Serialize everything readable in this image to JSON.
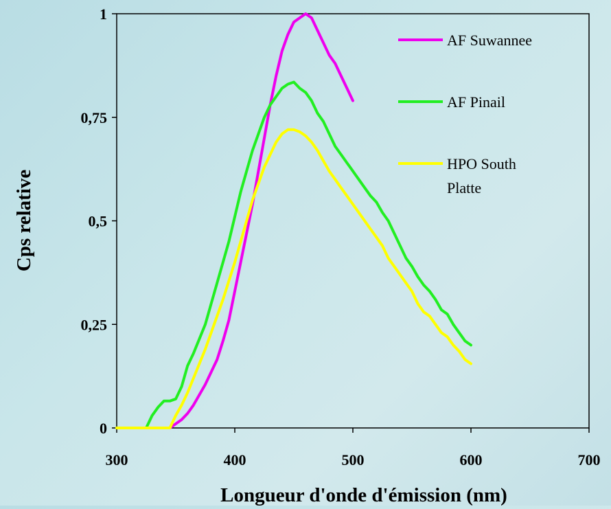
{
  "chart_data": {
    "type": "line",
    "title": "",
    "xlabel": "Longueur d'onde d'émission (nm)",
    "ylabel": "Cps relative",
    "xlim": [
      300,
      700
    ],
    "ylim": [
      0,
      1
    ],
    "x_ticks": [
      300,
      400,
      500,
      600,
      700
    ],
    "y_ticks": [
      {
        "value": 0,
        "label": "0"
      },
      {
        "value": 0.25,
        "label": "0,25"
      },
      {
        "value": 0.5,
        "label": "0,5"
      },
      {
        "value": 0.75,
        "label": "0,75"
      },
      {
        "value": 1,
        "label": "1"
      }
    ],
    "grid": false,
    "legend_position": "top-right",
    "series": [
      {
        "name": "AF Suwannee",
        "color": "#ee00ee",
        "legend_lines": [
          "AF Suwannee"
        ],
        "points": [
          [
            300,
            0
          ],
          [
            345,
            0
          ],
          [
            350,
            0.01
          ],
          [
            355,
            0.02
          ],
          [
            360,
            0.035
          ],
          [
            365,
            0.055
          ],
          [
            370,
            0.08
          ],
          [
            375,
            0.105
          ],
          [
            380,
            0.135
          ],
          [
            385,
            0.165
          ],
          [
            390,
            0.21
          ],
          [
            395,
            0.26
          ],
          [
            400,
            0.33
          ],
          [
            405,
            0.4
          ],
          [
            410,
            0.47
          ],
          [
            415,
            0.54
          ],
          [
            420,
            0.62
          ],
          [
            425,
            0.7
          ],
          [
            430,
            0.78
          ],
          [
            435,
            0.85
          ],
          [
            440,
            0.91
          ],
          [
            445,
            0.95
          ],
          [
            450,
            0.98
          ],
          [
            455,
            0.99
          ],
          [
            460,
            1.0
          ],
          [
            465,
            0.99
          ],
          [
            470,
            0.96
          ],
          [
            475,
            0.93
          ],
          [
            480,
            0.9
          ],
          [
            485,
            0.88
          ],
          [
            490,
            0.85
          ],
          [
            495,
            0.82
          ],
          [
            500,
            0.79
          ]
        ]
      },
      {
        "name": "AF Pinail",
        "color": "#22ee22",
        "legend_lines": [
          "AF Pinail"
        ],
        "points": [
          [
            300,
            0
          ],
          [
            325,
            0
          ],
          [
            330,
            0.03
          ],
          [
            335,
            0.05
          ],
          [
            340,
            0.065
          ],
          [
            345,
            0.065
          ],
          [
            350,
            0.07
          ],
          [
            355,
            0.1
          ],
          [
            360,
            0.15
          ],
          [
            365,
            0.18
          ],
          [
            370,
            0.215
          ],
          [
            375,
            0.25
          ],
          [
            380,
            0.3
          ],
          [
            385,
            0.35
          ],
          [
            390,
            0.4
          ],
          [
            395,
            0.45
          ],
          [
            400,
            0.51
          ],
          [
            405,
            0.57
          ],
          [
            410,
            0.62
          ],
          [
            415,
            0.67
          ],
          [
            420,
            0.71
          ],
          [
            425,
            0.75
          ],
          [
            430,
            0.78
          ],
          [
            435,
            0.8
          ],
          [
            440,
            0.82
          ],
          [
            445,
            0.83
          ],
          [
            450,
            0.835
          ],
          [
            455,
            0.82
          ],
          [
            460,
            0.81
          ],
          [
            465,
            0.79
          ],
          [
            470,
            0.76
          ],
          [
            475,
            0.74
          ],
          [
            480,
            0.71
          ],
          [
            485,
            0.68
          ],
          [
            490,
            0.66
          ],
          [
            495,
            0.64
          ],
          [
            500,
            0.62
          ],
          [
            505,
            0.6
          ],
          [
            510,
            0.58
          ],
          [
            515,
            0.56
          ],
          [
            520,
            0.545
          ],
          [
            525,
            0.52
          ],
          [
            530,
            0.5
          ],
          [
            535,
            0.47
          ],
          [
            540,
            0.44
          ],
          [
            545,
            0.41
          ],
          [
            550,
            0.39
          ],
          [
            555,
            0.365
          ],
          [
            560,
            0.345
          ],
          [
            565,
            0.33
          ],
          [
            570,
            0.31
          ],
          [
            575,
            0.285
          ],
          [
            580,
            0.275
          ],
          [
            585,
            0.25
          ],
          [
            590,
            0.23
          ],
          [
            595,
            0.21
          ],
          [
            600,
            0.2
          ]
        ]
      },
      {
        "name": "HPO South Platte",
        "color": "#ffff00",
        "legend_lines": [
          "HPO South",
          "Platte"
        ],
        "points": [
          [
            300,
            0
          ],
          [
            345,
            0
          ],
          [
            350,
            0.03
          ],
          [
            355,
            0.055
          ],
          [
            360,
            0.085
          ],
          [
            365,
            0.12
          ],
          [
            370,
            0.155
          ],
          [
            375,
            0.19
          ],
          [
            380,
            0.23
          ],
          [
            385,
            0.27
          ],
          [
            390,
            0.31
          ],
          [
            395,
            0.355
          ],
          [
            400,
            0.4
          ],
          [
            405,
            0.45
          ],
          [
            410,
            0.5
          ],
          [
            415,
            0.55
          ],
          [
            420,
            0.59
          ],
          [
            425,
            0.63
          ],
          [
            430,
            0.66
          ],
          [
            435,
            0.69
          ],
          [
            440,
            0.71
          ],
          [
            445,
            0.72
          ],
          [
            450,
            0.72
          ],
          [
            455,
            0.715
          ],
          [
            460,
            0.705
          ],
          [
            465,
            0.69
          ],
          [
            470,
            0.67
          ],
          [
            475,
            0.645
          ],
          [
            480,
            0.62
          ],
          [
            485,
            0.6
          ],
          [
            490,
            0.58
          ],
          [
            495,
            0.56
          ],
          [
            500,
            0.54
          ],
          [
            505,
            0.52
          ],
          [
            510,
            0.5
          ],
          [
            515,
            0.48
          ],
          [
            520,
            0.46
          ],
          [
            525,
            0.44
          ],
          [
            530,
            0.41
          ],
          [
            535,
            0.39
          ],
          [
            540,
            0.37
          ],
          [
            545,
            0.35
          ],
          [
            550,
            0.33
          ],
          [
            555,
            0.3
          ],
          [
            560,
            0.28
          ],
          [
            565,
            0.27
          ],
          [
            570,
            0.25
          ],
          [
            575,
            0.23
          ],
          [
            580,
            0.22
          ],
          [
            585,
            0.2
          ],
          [
            590,
            0.185
          ],
          [
            595,
            0.165
          ],
          [
            600,
            0.155
          ]
        ]
      }
    ]
  }
}
